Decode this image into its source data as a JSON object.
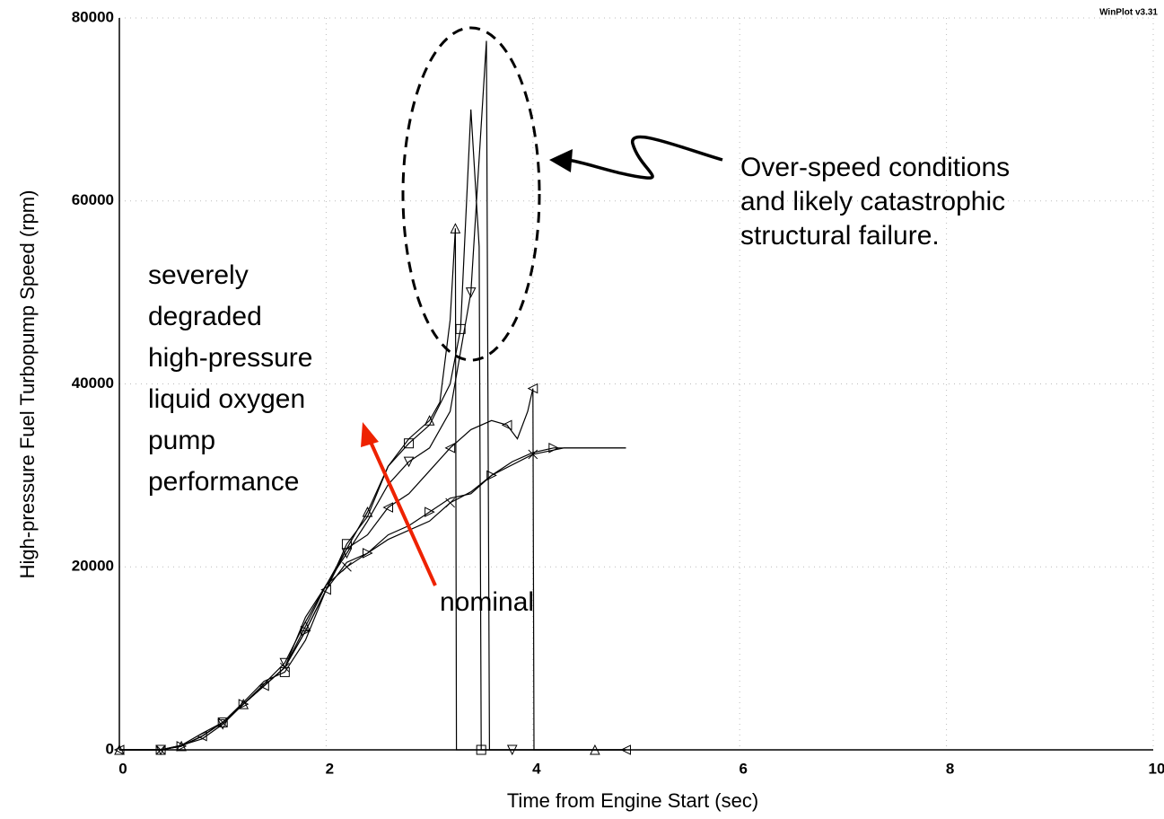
{
  "chart_data": {
    "type": "line",
    "watermark": "WinPlot v3.31",
    "xlabel": "Time from Engine Start (sec)",
    "ylabel": "High-pressure Fuel Turbopump Speed (rpm)",
    "xlim": [
      0,
      10
    ],
    "ylim": [
      0,
      80000
    ],
    "xticks": [
      0,
      2,
      4,
      6,
      8,
      10
    ],
    "yticks": [
      0,
      20000,
      40000,
      60000,
      80000
    ],
    "grid": true,
    "annotations": [
      {
        "lines": [
          "Over-speed conditions",
          "and likely catastrophic",
          "structural failure."
        ]
      },
      {
        "lines": [
          "severely",
          "degraded",
          "high-pressure",
          "liquid oxygen",
          "pump",
          "performance"
        ]
      },
      {
        "lines": [
          "nominal"
        ]
      }
    ],
    "series": [
      {
        "color": "#000000",
        "marker": "triangle-up",
        "x": [
          0,
          0.2,
          0.4,
          0.6,
          0.8,
          1.0,
          1.2,
          1.4,
          1.6,
          1.8,
          2.0,
          2.2,
          2.4,
          2.6,
          2.8,
          3.0,
          3.1,
          3.2,
          3.25,
          3.26,
          4.0,
          4.6,
          4.9
        ],
        "values": [
          0,
          0,
          0,
          400,
          1500,
          3000,
          5000,
          7000,
          9000,
          13500,
          18000,
          22000,
          26000,
          31000,
          34000,
          36000,
          38000,
          47000,
          57000,
          0,
          0,
          0,
          0
        ]
      },
      {
        "color": "#000000",
        "marker": "square",
        "x": [
          0,
          0.2,
          0.4,
          0.6,
          0.8,
          1.0,
          1.2,
          1.4,
          1.6,
          1.8,
          2.0,
          2.2,
          2.4,
          2.6,
          2.8,
          3.0,
          3.2,
          3.3,
          3.4,
          3.48,
          3.5,
          3.8,
          4.9
        ],
        "values": [
          0,
          0,
          0,
          500,
          1800,
          3000,
          5200,
          7500,
          8500,
          12000,
          17500,
          22500,
          25500,
          31000,
          33500,
          35500,
          40000,
          46000,
          70000,
          55000,
          0,
          0,
          0
        ]
      },
      {
        "color": "#000000",
        "marker": "triangle-down",
        "x": [
          0,
          0.4,
          0.6,
          0.8,
          1.0,
          1.2,
          1.4,
          1.6,
          1.8,
          2.0,
          2.2,
          2.4,
          2.6,
          2.8,
          3.0,
          3.2,
          3.4,
          3.55,
          3.58,
          3.8,
          4.5,
          4.9
        ],
        "values": [
          0,
          0,
          500,
          1200,
          2800,
          5000,
          7200,
          9500,
          14000,
          18000,
          21500,
          25000,
          29000,
          31500,
          33000,
          37000,
          50000,
          77500,
          0,
          0,
          0,
          0
        ]
      },
      {
        "color": "#000000",
        "marker": "triangle-left",
        "x": [
          0,
          0.4,
          0.6,
          0.8,
          1.0,
          1.2,
          1.4,
          1.6,
          1.8,
          2.0,
          2.2,
          2.4,
          2.6,
          2.8,
          3.0,
          3.2,
          3.4,
          3.6,
          3.75,
          3.85,
          3.95,
          4.0,
          4.01,
          4.4,
          4.9
        ],
        "values": [
          0,
          0,
          400,
          1500,
          3000,
          5000,
          7000,
          9000,
          13000,
          17500,
          22000,
          23500,
          26500,
          28000,
          30500,
          33000,
          35000,
          36000,
          35500,
          34000,
          37000,
          39500,
          0,
          0,
          0
        ]
      },
      {
        "color": "#000000",
        "marker": "triangle-right",
        "x": [
          0,
          0.4,
          0.6,
          0.8,
          1.0,
          1.2,
          1.4,
          1.6,
          1.8,
          2.0,
          2.2,
          2.4,
          2.6,
          2.8,
          3.0,
          3.2,
          3.4,
          3.6,
          3.8,
          4.0,
          4.2,
          4.4,
          4.9
        ],
        "values": [
          0,
          0,
          400,
          1500,
          3000,
          5000,
          7000,
          9000,
          13000,
          17500,
          20500,
          21500,
          23500,
          24500,
          26000,
          27500,
          28000,
          30000,
          31500,
          32500,
          33000,
          33000,
          33000
        ]
      },
      {
        "color": "#000000",
        "marker": "x",
        "x": [
          0,
          0.4,
          0.6,
          0.8,
          1.0,
          1.2,
          1.4,
          1.6,
          1.8,
          2.0,
          2.2,
          2.6,
          3.0,
          3.2,
          3.4,
          3.6,
          4.0,
          4.3,
          4.9
        ],
        "values": [
          0,
          0,
          400,
          1500,
          3000,
          5000,
          7000,
          9000,
          14500,
          18000,
          20000,
          23000,
          25000,
          27000,
          28200,
          30000,
          32300,
          33000,
          33000
        ]
      }
    ]
  }
}
